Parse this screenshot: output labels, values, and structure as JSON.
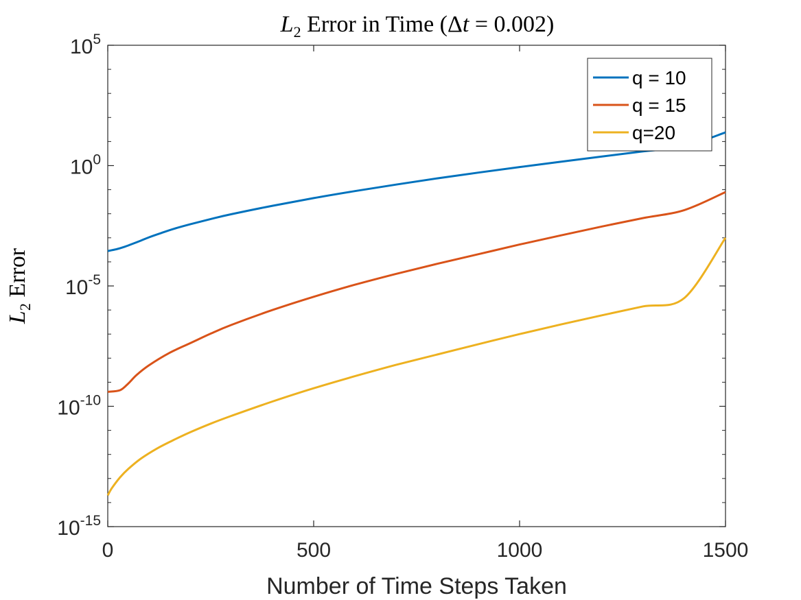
{
  "chart_data": {
    "type": "line",
    "title": {
      "prefix": "L",
      "sub": "2",
      "rest": " Error in Time (",
      "delta": "Δ",
      "t": "t",
      "eq": " = 0.002)"
    },
    "xlabel": "Number of Time Steps Taken",
    "ylabel": {
      "prefix": "L",
      "sub": "2",
      "rest": " Error"
    },
    "xlim": [
      0,
      1500
    ],
    "ylim_exponent": [
      -15,
      5
    ],
    "yscale": "log",
    "xticks": [
      0,
      500,
      1000,
      1500
    ],
    "xtick_labels": [
      "0",
      "500",
      "1000",
      "1500"
    ],
    "yticks": [
      -15,
      -10,
      -5,
      0,
      5
    ],
    "ytick_labels": [
      {
        "base": "10",
        "exp": "-15"
      },
      {
        "base": "10",
        "exp": "-10"
      },
      {
        "base": "10",
        "exp": "-5"
      },
      {
        "base": "10",
        "exp": "0"
      },
      {
        "base": "10",
        "exp": "5"
      }
    ],
    "grid": false,
    "legend_position": "top-right",
    "series": [
      {
        "name": "q = 10",
        "color": "#0072BD",
        "x": [
          0,
          20,
          40,
          60,
          80,
          100,
          130,
          160,
          200,
          250,
          300,
          400,
          500,
          600,
          700,
          800,
          900,
          1000,
          1100,
          1200,
          1300,
          1400,
          1500
        ],
        "log10y": [
          -3.55,
          -3.48,
          -3.38,
          -3.25,
          -3.12,
          -2.98,
          -2.8,
          -2.63,
          -2.44,
          -2.22,
          -2.02,
          -1.67,
          -1.35,
          -1.06,
          -0.79,
          -0.53,
          -0.29,
          -0.06,
          0.16,
          0.38,
          0.59,
          0.8,
          1.38
        ]
      },
      {
        "name": "q = 15",
        "color": "#D95319",
        "x": [
          0,
          30,
          50,
          70,
          100,
          150,
          200,
          250,
          300,
          400,
          500,
          600,
          700,
          800,
          900,
          1000,
          1100,
          1200,
          1300,
          1400,
          1500
        ],
        "log10y": [
          -9.4,
          -9.33,
          -9.05,
          -8.7,
          -8.3,
          -7.78,
          -7.38,
          -6.98,
          -6.62,
          -6.0,
          -5.45,
          -4.95,
          -4.5,
          -4.08,
          -3.68,
          -3.28,
          -2.9,
          -2.53,
          -2.18,
          -1.85,
          -1.1
        ]
      },
      {
        "name": "q=20",
        "color": "#EDB120",
        "x": [
          0,
          10,
          30,
          50,
          80,
          120,
          160,
          200,
          250,
          300,
          400,
          500,
          600,
          700,
          800,
          900,
          1000,
          1100,
          1200,
          1300,
          1400,
          1500
        ],
        "log10y": [
          -13.7,
          -13.4,
          -12.95,
          -12.6,
          -12.18,
          -11.75,
          -11.4,
          -11.08,
          -10.72,
          -10.4,
          -9.8,
          -9.25,
          -8.75,
          -8.28,
          -7.85,
          -7.42,
          -7.0,
          -6.6,
          -6.22,
          -5.85,
          -5.5,
          -3.0
        ]
      }
    ]
  }
}
